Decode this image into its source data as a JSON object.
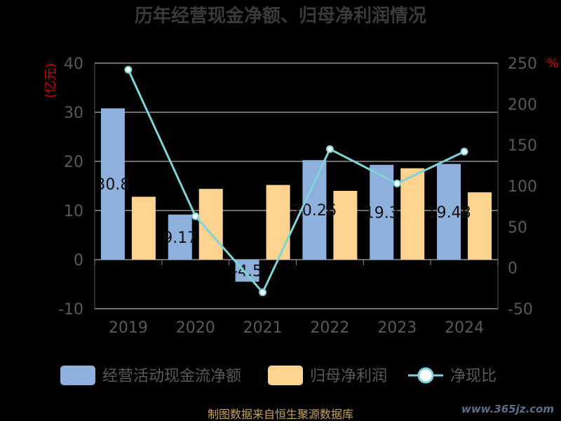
{
  "chart_data": {
    "type": "bar",
    "title": "历年经营现金净额、归母净利润情况",
    "categories": [
      "2019",
      "2020",
      "2021",
      "2022",
      "2023",
      "2024"
    ],
    "left_axis": {
      "unit": "(亿元)",
      "ylim": [
        -10,
        40
      ],
      "ticks": [
        "40",
        "30",
        "20",
        "10",
        "0",
        "-10"
      ]
    },
    "right_axis": {
      "unit": "%",
      "ylim": [
        -50,
        250
      ],
      "ticks": [
        "250",
        "200",
        "150",
        "100",
        "50",
        "0",
        "-50"
      ]
    },
    "series": [
      {
        "name": "经营活动现金流净额",
        "type": "bar",
        "axis": "left",
        "color": "#8eb0dc",
        "values": [
          30.8,
          9.17,
          -4.5,
          20.26,
          19.3,
          19.48
        ],
        "labels": [
          "30.8",
          "9.17",
          "-4.5",
          "20.26",
          "19.3",
          "19.48"
        ]
      },
      {
        "name": "归母净利润",
        "type": "bar",
        "axis": "left",
        "color": "#fdd48f",
        "values": [
          12.8,
          14.4,
          15.2,
          14.0,
          18.6,
          13.7
        ]
      },
      {
        "name": "净现比",
        "type": "line",
        "axis": "right",
        "color": "#7fd3d6",
        "values": [
          242,
          63,
          -30,
          145,
          103,
          142
        ]
      }
    ],
    "grid": true,
    "legend_position": "bottom"
  },
  "footer": {
    "source": "制图数据来自恒生聚源数据库",
    "watermark": "www.365jz.com"
  }
}
